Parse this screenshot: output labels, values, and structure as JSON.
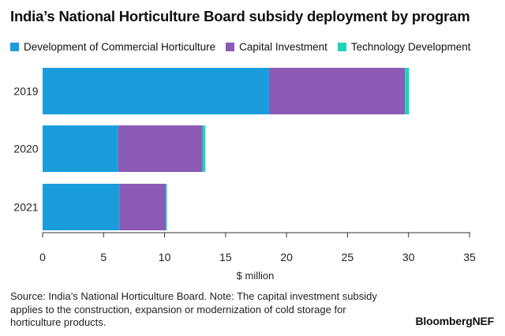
{
  "title": "India’s National Horticulture Board subsidy deployment by program",
  "footnote": "Source: India’s National Horticulture Board. Note: The capital investment subsidy applies to the construction, expansion or modernization of cold storage for horticulture products.",
  "brand": "BloombergNEF",
  "chart_data": {
    "type": "bar",
    "orientation": "horizontal",
    "stacked": true,
    "title": "India’s National Horticulture Board subsidy deployment by program",
    "xlabel": "$ million",
    "ylabel": "",
    "xlim": [
      0,
      35
    ],
    "xticks": [
      0,
      5,
      10,
      15,
      20,
      25,
      30,
      35
    ],
    "categories": [
      "2019",
      "2020",
      "2021"
    ],
    "legend_position": "top",
    "grid": false,
    "series": [
      {
        "name": "Development of Commercial Horticulture",
        "color": "#1b9ddc",
        "values": [
          18.6,
          6.2,
          6.3
        ]
      },
      {
        "name": "Capital Investment",
        "color": "#8b5ab5",
        "values": [
          11.1,
          6.9,
          3.8
        ]
      },
      {
        "name": "Technology Development",
        "color": "#1fd4b9",
        "values": [
          0.35,
          0.25,
          0.1
        ]
      }
    ]
  }
}
